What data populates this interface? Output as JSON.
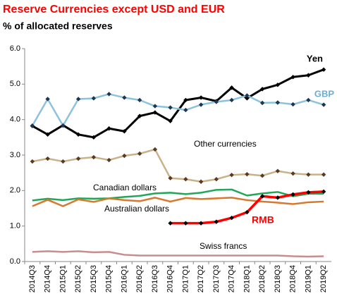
{
  "chart_data": {
    "type": "line",
    "title": "Reserve Currencies except USD and EUR",
    "subtitle": "% of allocated reserves",
    "categories": [
      "2014Q3",
      "2014Q4",
      "2015Q1",
      "2015Q2",
      "2015Q3",
      "2015Q4",
      "2016Q1",
      "2016Q2",
      "2016Q3",
      "2016Q4",
      "2017Q1",
      "2017Q2",
      "2017Q3",
      "2017Q4",
      "2018Q1",
      "2018Q2",
      "2018Q3",
      "2018Q4",
      "2019Q1",
      "2019Q2"
    ],
    "ylim": [
      0,
      6
    ],
    "yticks": [
      {
        "value": 0,
        "label": "0.0"
      },
      {
        "value": 1,
        "label": "1.0"
      },
      {
        "value": 2,
        "label": "2.0"
      },
      {
        "value": 3,
        "label": "3.0"
      },
      {
        "value": 4,
        "label": "4.0"
      },
      {
        "value": 5,
        "label": "5.0"
      },
      {
        "value": 6,
        "label": "6.0"
      }
    ],
    "series": [
      {
        "name": "Yen",
        "color": "#000000",
        "marker_color": "#000000",
        "label_color": "#000000",
        "values": [
          3.82,
          3.58,
          3.84,
          3.58,
          3.5,
          3.75,
          3.67,
          4.1,
          4.2,
          3.96,
          4.55,
          4.62,
          4.52,
          4.9,
          4.6,
          4.86,
          4.98,
          5.2,
          5.25,
          5.41
        ]
      },
      {
        "name": "GBP",
        "color": "#8cc3dc",
        "marker_color": "#1f3550",
        "label_color": "#6aaed6",
        "values": [
          3.83,
          4.58,
          3.83,
          4.58,
          4.6,
          4.72,
          4.62,
          4.55,
          4.38,
          4.34,
          4.27,
          4.42,
          4.5,
          4.55,
          4.68,
          4.47,
          4.48,
          4.43,
          4.55,
          4.42
        ]
      },
      {
        "name": "Other currencies",
        "color": "#c9b28a",
        "marker_color": "#5a3a20",
        "label_color": "#000000",
        "values": [
          2.82,
          2.9,
          2.82,
          2.9,
          2.94,
          2.86,
          2.98,
          3.04,
          3.16,
          2.35,
          2.32,
          2.25,
          2.32,
          2.44,
          2.46,
          2.42,
          2.55,
          2.48,
          2.45,
          2.45
        ]
      },
      {
        "name": "Canadian dollars",
        "color": "#22a65a",
        "label_color": "#000000",
        "values": [
          1.72,
          1.77,
          1.73,
          1.78,
          1.77,
          1.78,
          1.82,
          1.85,
          1.92,
          1.94,
          1.9,
          1.94,
          2.02,
          2.03,
          1.86,
          1.92,
          1.96,
          1.84,
          1.91,
          1.91
        ]
      },
      {
        "name": "Australian dollars",
        "color": "#d8782e",
        "label_color": "#000000",
        "values": [
          1.56,
          1.74,
          1.56,
          1.75,
          1.68,
          1.78,
          1.73,
          1.7,
          1.8,
          1.69,
          1.79,
          1.76,
          1.78,
          1.8,
          1.73,
          1.69,
          1.66,
          1.62,
          1.67,
          1.69
        ]
      },
      {
        "name": "RMB",
        "color": "#ff0000",
        "marker_color": "#000000",
        "label_color": "#ff0000",
        "values": [
          null,
          null,
          null,
          null,
          null,
          null,
          null,
          null,
          null,
          1.08,
          1.08,
          1.08,
          1.12,
          1.23,
          1.39,
          1.84,
          1.8,
          1.89,
          1.95,
          1.97
        ]
      },
      {
        "name": "Swiss francs",
        "color": "#c98d8d",
        "label_color": "#000000",
        "values": [
          0.27,
          0.29,
          0.27,
          0.29,
          0.26,
          0.27,
          0.19,
          0.17,
          0.17,
          0.17,
          0.17,
          0.17,
          0.17,
          0.17,
          0.17,
          0.17,
          0.17,
          0.15,
          0.14,
          0.15
        ]
      }
    ]
  }
}
